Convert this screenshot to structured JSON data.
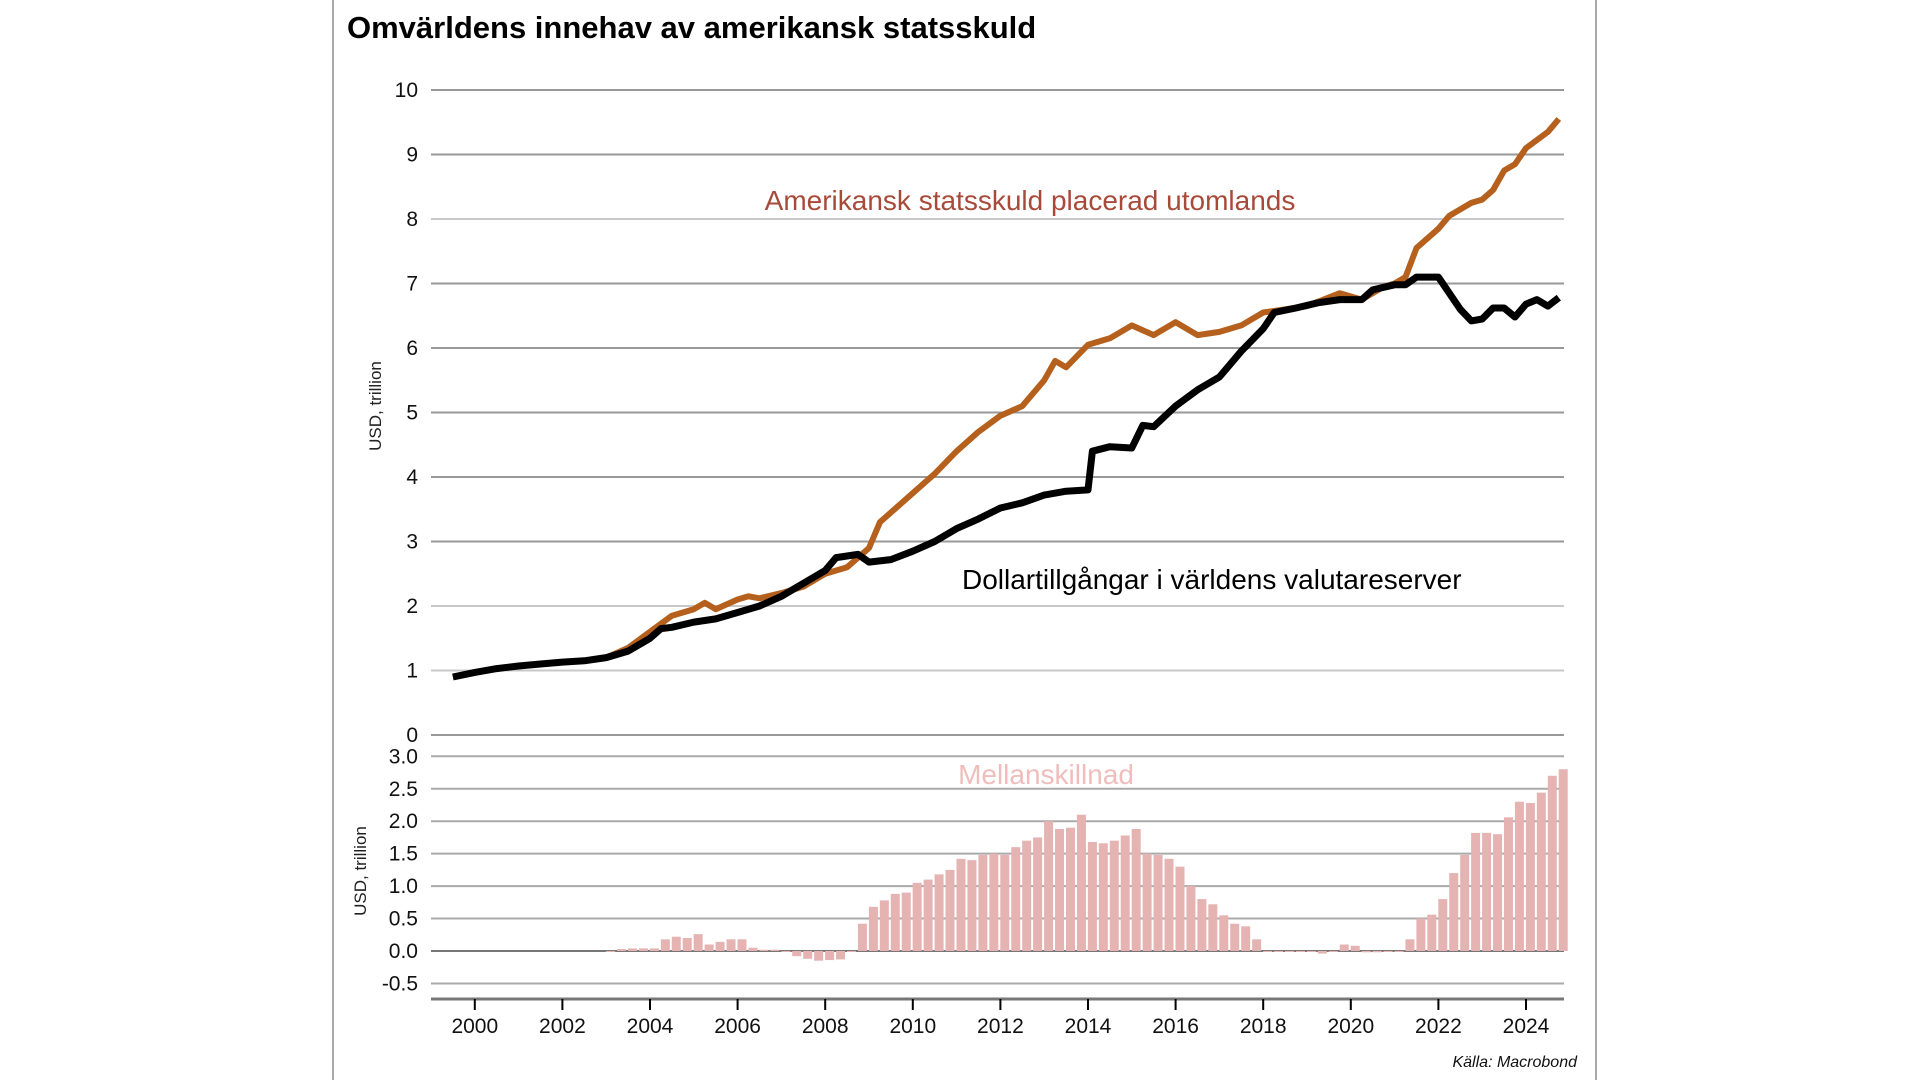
{
  "chart_data": [
    {
      "type": "line",
      "title": "Omvärldens innehav av amerikansk statsskuld",
      "ylabel": "USD, trillion",
      "ylim": [
        0,
        10
      ],
      "yticks": [
        "0",
        "1",
        "2",
        "3",
        "4",
        "5",
        "6",
        "7",
        "8",
        "9",
        "10"
      ],
      "grid": true,
      "series": [
        {
          "name": "Amerikansk statsskuld placerad utomlands",
          "color": "#b5601c",
          "x": [
            1999.5,
            2000,
            2000.5,
            2001,
            2001.5,
            2002,
            2002.5,
            2003,
            2003.5,
            2004,
            2004.5,
            2005,
            2005.25,
            2005.5,
            2006,
            2006.25,
            2006.5,
            2007,
            2007.5,
            2008,
            2008.5,
            2009,
            2009.25,
            2009.5,
            2010,
            2010.5,
            2011,
            2011.5,
            2012,
            2012.5,
            2013,
            2013.25,
            2013.5,
            2014,
            2014.5,
            2015,
            2015.5,
            2016,
            2016.5,
            2017,
            2017.5,
            2018,
            2018.5,
            2019,
            2019.75,
            2020.25,
            2020.75,
            2021,
            2021.25,
            2021.5,
            2022,
            2022.25,
            2022.75,
            2023,
            2023.25,
            2023.5,
            2023.75,
            2024,
            2024.5,
            2024.75
          ],
          "y": [
            0.9,
            0.97,
            1.03,
            1.07,
            1.1,
            1.13,
            1.15,
            1.2,
            1.35,
            1.6,
            1.85,
            1.95,
            2.05,
            1.95,
            2.1,
            2.15,
            2.12,
            2.2,
            2.3,
            2.5,
            2.6,
            2.9,
            3.3,
            3.45,
            3.75,
            4.05,
            4.4,
            4.7,
            4.95,
            5.1,
            5.5,
            5.8,
            5.7,
            6.05,
            6.15,
            6.35,
            6.2,
            6.4,
            6.2,
            6.25,
            6.35,
            6.55,
            6.6,
            6.65,
            6.85,
            6.75,
            6.95,
            7.0,
            7.1,
            7.55,
            7.85,
            8.05,
            8.25,
            8.3,
            8.45,
            8.75,
            8.85,
            9.1,
            9.35,
            9.55
          ]
        },
        {
          "name": "Dollartillgångar i världens valutareserver",
          "color": "#000000",
          "x": [
            1999.5,
            2000,
            2000.5,
            2001,
            2001.5,
            2002,
            2002.5,
            2003,
            2003.5,
            2004,
            2004.25,
            2004.5,
            2005,
            2005.5,
            2006,
            2006.5,
            2007,
            2007.5,
            2008,
            2008.25,
            2008.75,
            2009,
            2009.5,
            2010,
            2010.5,
            2011,
            2011.5,
            2012,
            2012.5,
            2013,
            2013.5,
            2014,
            2014.1,
            2014.5,
            2015,
            2015.25,
            2015.5,
            2016,
            2016.5,
            2017,
            2017.5,
            2018,
            2018.25,
            2018.75,
            2019.25,
            2019.75,
            2020.25,
            2020.5,
            2021,
            2021.25,
            2021.5,
            2022,
            2022.5,
            2022.75,
            2023,
            2023.25,
            2023.5,
            2023.75,
            2024,
            2024.25,
            2024.5,
            2024.75
          ],
          "y": [
            0.9,
            0.97,
            1.03,
            1.07,
            1.1,
            1.13,
            1.15,
            1.2,
            1.3,
            1.5,
            1.65,
            1.67,
            1.75,
            1.8,
            1.9,
            2.0,
            2.15,
            2.35,
            2.55,
            2.75,
            2.8,
            2.68,
            2.72,
            2.85,
            3.0,
            3.2,
            3.35,
            3.52,
            3.6,
            3.72,
            3.78,
            3.8,
            4.4,
            4.47,
            4.45,
            4.8,
            4.78,
            5.1,
            5.35,
            5.55,
            5.95,
            6.3,
            6.55,
            6.62,
            6.7,
            6.75,
            6.75,
            6.9,
            6.98,
            6.98,
            7.1,
            7.1,
            6.6,
            6.42,
            6.45,
            6.62,
            6.62,
            6.48,
            6.68,
            6.75,
            6.65,
            6.78
          ]
        }
      ]
    },
    {
      "type": "bar",
      "title": "Mellanskillnad",
      "ylabel": "USD, trillion",
      "ylim": [
        -0.5,
        3.0
      ],
      "yticks": [
        "-0.5",
        "0.0",
        "0.5",
        "1.0",
        "1.5",
        "2.0",
        "2.5",
        "3.0"
      ],
      "xticks": [
        "2000",
        "2002",
        "2004",
        "2006",
        "2008",
        "2010",
        "2012",
        "2014",
        "2016",
        "2018",
        "2020",
        "2022",
        "2024"
      ],
      "start": 2003,
      "step": 0.25,
      "color": "#e6b3b3",
      "values": [
        0,
        0.03,
        0.04,
        0.04,
        0.04,
        0.18,
        0.22,
        0.2,
        0.26,
        0.1,
        0.14,
        0.18,
        0.18,
        0.05,
        0.02,
        0.02,
        0,
        -0.08,
        -0.12,
        -0.15,
        -0.14,
        -0.13,
        0,
        0.42,
        0.68,
        0.78,
        0.88,
        0.9,
        1.05,
        1.1,
        1.18,
        1.25,
        1.42,
        1.4,
        1.48,
        1.5,
        1.48,
        1.6,
        1.7,
        1.75,
        2.0,
        1.88,
        1.9,
        2.1,
        1.68,
        1.66,
        1.7,
        1.78,
        1.88,
        1.5,
        1.48,
        1.42,
        1.3,
        1.0,
        0.8,
        0.72,
        0.55,
        0.42,
        0.38,
        0.18,
        0,
        0,
        0,
        0,
        0,
        -0.04,
        0,
        0.1,
        0.08,
        -0.02,
        -0.02,
        0,
        0,
        0.18,
        0.5,
        0.56,
        0.8,
        1.2,
        1.48,
        1.82,
        1.82,
        1.8,
        2.06,
        2.3,
        2.28,
        2.44,
        2.7,
        2.8
      ]
    }
  ],
  "source": "Källa: Macrobond"
}
